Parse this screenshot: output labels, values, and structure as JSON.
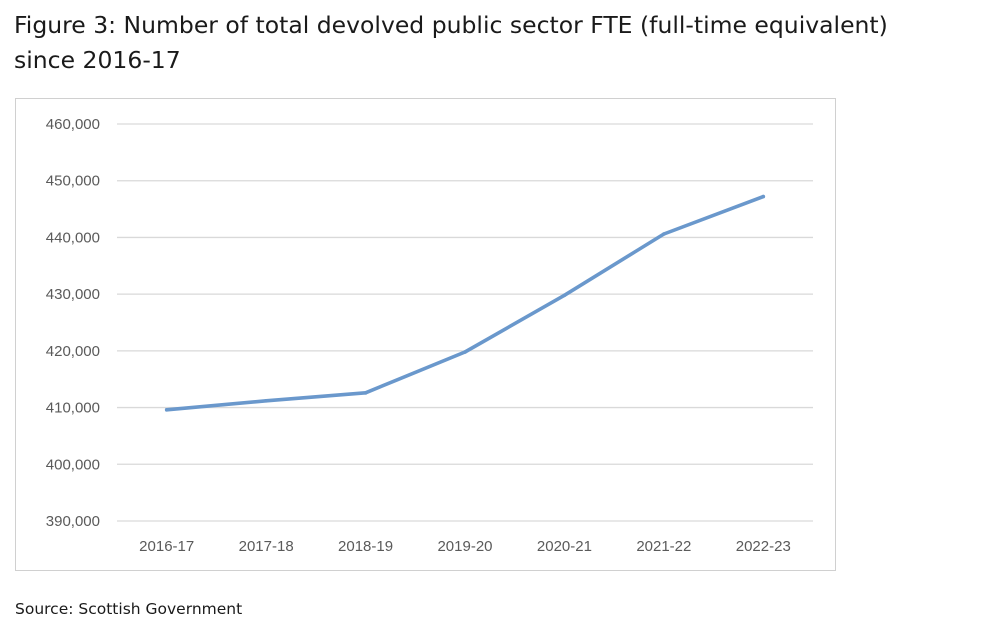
{
  "title": "Figure 3: Number of total devolved public sector FTE (full-time equivalent) since 2016-17",
  "title_lines": [
    "Figure 3: Number of total devolved public sector FTE (full-time equivalent)",
    "since 2016-17"
  ],
  "source": "Source: Scottish Government",
  "chart_data": {
    "type": "line",
    "categories": [
      "2016-17",
      "2017-18",
      "2018-19",
      "2019-20",
      "2020-21",
      "2021-22",
      "2022-23"
    ],
    "series": [
      {
        "values": [
          409600,
          411200,
          412600,
          419800,
          429800,
          440600,
          447200
        ],
        "color": "#6a98cc"
      }
    ],
    "ylim": [
      390000,
      460000
    ],
    "yticks": [
      390000,
      400000,
      410000,
      420000,
      430000,
      440000,
      450000,
      460000
    ],
    "ytick_labels": [
      "390,000",
      "400,000",
      "410,000",
      "420,000",
      "430,000",
      "440,000",
      "450,000",
      "460,000"
    ],
    "grid": true,
    "gridline_color": "#d9d9d9",
    "legend": "none"
  }
}
